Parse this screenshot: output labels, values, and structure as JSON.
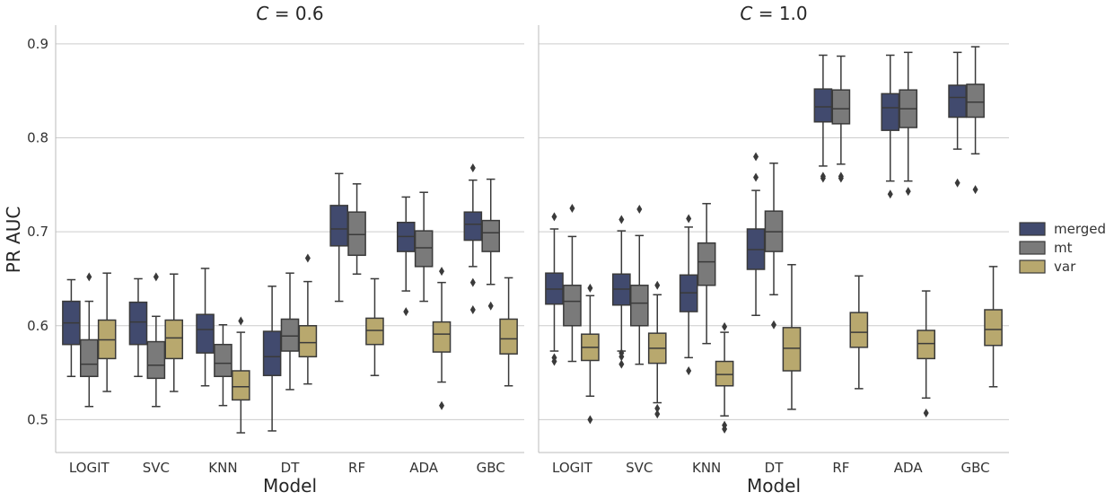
{
  "chart_data": {
    "type": "box",
    "ylabel": "PR AUC",
    "xlabel": "Model",
    "ylim": [
      0.465,
      0.92
    ],
    "yticks": [
      "0.5",
      "0.6",
      "0.7",
      "0.8",
      "0.9"
    ],
    "ytick_values": [
      0.5,
      0.6,
      0.7,
      0.8,
      0.9
    ],
    "grid": "horizontal",
    "legend_position": "right",
    "categories": [
      "LOGIT",
      "SVC",
      "KNN",
      "DT",
      "RF",
      "ADA",
      "GBC"
    ],
    "series": [
      {
        "name": "merged",
        "color": "#414a6e"
      },
      {
        "name": "mt",
        "color": "#7a7a7a"
      },
      {
        "name": "var",
        "color": "#b8a86e"
      }
    ],
    "panels": [
      {
        "title_var": "C",
        "title_eq": "= 0.6",
        "boxes": {
          "merged": [
            {
              "cat": "LOGIT",
              "whislo": 0.546,
              "q1": 0.58,
              "med": 0.603,
              "q3": 0.626,
              "whishi": 0.649,
              "fliers": []
            },
            {
              "cat": "SVC",
              "whislo": 0.546,
              "q1": 0.58,
              "med": 0.604,
              "q3": 0.625,
              "whishi": 0.65,
              "fliers": []
            },
            {
              "cat": "KNN",
              "whislo": 0.536,
              "q1": 0.571,
              "med": 0.596,
              "q3": 0.612,
              "whishi": 0.661,
              "fliers": []
            },
            {
              "cat": "DT",
              "whislo": 0.488,
              "q1": 0.547,
              "med": 0.567,
              "q3": 0.594,
              "whishi": 0.642,
              "fliers": []
            }
          ],
          "mt": [
            {
              "cat": "LOGIT",
              "whislo": 0.514,
              "q1": 0.546,
              "med": 0.559,
              "q3": 0.585,
              "whishi": 0.626,
              "fliers": [
                0.652
              ]
            },
            {
              "cat": "SVC",
              "whislo": 0.514,
              "q1": 0.544,
              "med": 0.558,
              "q3": 0.583,
              "whishi": 0.61,
              "fliers": [
                0.652
              ]
            },
            {
              "cat": "KNN",
              "whislo": 0.515,
              "q1": 0.546,
              "med": 0.56,
              "q3": 0.58,
              "whishi": 0.601,
              "fliers": []
            },
            {
              "cat": "DT",
              "whislo": 0.532,
              "q1": 0.573,
              "med": 0.589,
              "q3": 0.607,
              "whishi": 0.656,
              "fliers": []
            },
            {
              "cat": "RF",
              "whislo": 0.655,
              "q1": 0.675,
              "med": 0.697,
              "q3": 0.721,
              "whishi": 0.751,
              "fliers": []
            },
            {
              "cat": "ADA",
              "whislo": 0.626,
              "q1": 0.663,
              "med": 0.683,
              "q3": 0.701,
              "whishi": 0.742,
              "fliers": []
            },
            {
              "cat": "GBC",
              "whislo": 0.644,
              "q1": 0.679,
              "med": 0.699,
              "q3": 0.712,
              "whishi": 0.756,
              "fliers": [
                0.621
              ]
            }
          ],
          "var": [
            {
              "cat": "LOGIT",
              "whislo": 0.53,
              "q1": 0.565,
              "med": 0.585,
              "q3": 0.606,
              "whishi": 0.656,
              "fliers": []
            },
            {
              "cat": "SVC",
              "whislo": 0.53,
              "q1": 0.565,
              "med": 0.587,
              "q3": 0.606,
              "whishi": 0.655,
              "fliers": []
            },
            {
              "cat": "KNN",
              "whislo": 0.486,
              "q1": 0.521,
              "med": 0.535,
              "q3": 0.552,
              "whishi": 0.593,
              "fliers": [
                0.605
              ]
            },
            {
              "cat": "DT",
              "whislo": 0.538,
              "q1": 0.567,
              "med": 0.582,
              "q3": 0.6,
              "whishi": 0.647,
              "fliers": [
                0.672
              ]
            },
            {
              "cat": "RF",
              "whislo": 0.547,
              "q1": 0.58,
              "med": 0.595,
              "q3": 0.608,
              "whishi": 0.65,
              "fliers": []
            },
            {
              "cat": "ADA",
              "whislo": 0.54,
              "q1": 0.572,
              "med": 0.591,
              "q3": 0.604,
              "whishi": 0.646,
              "fliers": [
                0.658,
                0.515
              ]
            },
            {
              "cat": "GBC",
              "whislo": 0.536,
              "q1": 0.57,
              "med": 0.586,
              "q3": 0.607,
              "whishi": 0.651,
              "fliers": []
            }
          ]
        },
        "rf_ada_gbc_merged": [
          {
            "cat": "RF",
            "whislo": 0.626,
            "q1": 0.685,
            "med": 0.703,
            "q3": 0.728,
            "whishi": 0.762,
            "fliers": []
          },
          {
            "cat": "ADA",
            "whislo": 0.637,
            "q1": 0.679,
            "med": 0.695,
            "q3": 0.71,
            "whishi": 0.737,
            "fliers": [
              0.615
            ]
          },
          {
            "cat": "GBC",
            "whislo": 0.663,
            "q1": 0.691,
            "med": 0.708,
            "q3": 0.721,
            "whishi": 0.755,
            "fliers": [
              0.768,
              0.646,
              0.617
            ]
          }
        ]
      },
      {
        "title_var": "C",
        "title_eq": "= 1.0",
        "boxes": {
          "merged": [
            {
              "cat": "LOGIT",
              "whislo": 0.573,
              "q1": 0.623,
              "med": 0.639,
              "q3": 0.656,
              "whishi": 0.703,
              "fliers": [
                0.716,
                0.566,
                0.562
              ]
            },
            {
              "cat": "SVC",
              "whislo": 0.573,
              "q1": 0.622,
              "med": 0.639,
              "q3": 0.655,
              "whishi": 0.701,
              "fliers": [
                0.713,
                0.571,
                0.567,
                0.559
              ]
            },
            {
              "cat": "KNN",
              "whislo": 0.566,
              "q1": 0.615,
              "med": 0.635,
              "q3": 0.654,
              "whishi": 0.705,
              "fliers": [
                0.714,
                0.552
              ]
            },
            {
              "cat": "DT",
              "whislo": 0.611,
              "q1": 0.66,
              "med": 0.681,
              "q3": 0.703,
              "whishi": 0.744,
              "fliers": [
                0.78,
                0.758
              ]
            },
            {
              "cat": "RF",
              "whislo": 0.77,
              "q1": 0.817,
              "med": 0.833,
              "q3": 0.852,
              "whishi": 0.888,
              "fliers": [
                0.759,
                0.757
              ]
            },
            {
              "cat": "ADA",
              "whislo": 0.754,
              "q1": 0.808,
              "med": 0.832,
              "q3": 0.847,
              "whishi": 0.888,
              "fliers": [
                0.74
              ]
            },
            {
              "cat": "GBC",
              "whislo": 0.788,
              "q1": 0.822,
              "med": 0.843,
              "q3": 0.856,
              "whishi": 0.891,
              "fliers": [
                0.752
              ]
            }
          ],
          "mt": [
            {
              "cat": "LOGIT",
              "whislo": 0.562,
              "q1": 0.6,
              "med": 0.626,
              "q3": 0.643,
              "whishi": 0.695,
              "fliers": [
                0.725
              ]
            },
            {
              "cat": "SVC",
              "whislo": 0.559,
              "q1": 0.6,
              "med": 0.624,
              "q3": 0.643,
              "whishi": 0.696,
              "fliers": [
                0.724
              ]
            },
            {
              "cat": "KNN",
              "whislo": 0.581,
              "q1": 0.643,
              "med": 0.668,
              "q3": 0.688,
              "whishi": 0.73,
              "fliers": []
            },
            {
              "cat": "DT",
              "whislo": 0.633,
              "q1": 0.679,
              "med": 0.7,
              "q3": 0.722,
              "whishi": 0.773,
              "fliers": [
                0.601
              ]
            },
            {
              "cat": "RF",
              "whislo": 0.772,
              "q1": 0.815,
              "med": 0.831,
              "q3": 0.851,
              "whishi": 0.887,
              "fliers": [
                0.759,
                0.757
              ]
            },
            {
              "cat": "ADA",
              "whislo": 0.754,
              "q1": 0.811,
              "med": 0.831,
              "q3": 0.851,
              "whishi": 0.891,
              "fliers": [
                0.743
              ]
            },
            {
              "cat": "GBC",
              "whislo": 0.783,
              "q1": 0.822,
              "med": 0.838,
              "q3": 0.857,
              "whishi": 0.897,
              "fliers": [
                0.745
              ]
            }
          ],
          "var": [
            {
              "cat": "LOGIT",
              "whislo": 0.525,
              "q1": 0.563,
              "med": 0.577,
              "q3": 0.591,
              "whishi": 0.632,
              "fliers": [
                0.64,
                0.5
              ]
            },
            {
              "cat": "SVC",
              "whislo": 0.518,
              "q1": 0.56,
              "med": 0.576,
              "q3": 0.592,
              "whishi": 0.633,
              "fliers": [
                0.643,
                0.512,
                0.506
              ]
            },
            {
              "cat": "KNN",
              "whislo": 0.504,
              "q1": 0.536,
              "med": 0.548,
              "q3": 0.562,
              "whishi": 0.593,
              "fliers": [
                0.599,
                0.494,
                0.49
              ]
            },
            {
              "cat": "DT",
              "whislo": 0.511,
              "q1": 0.552,
              "med": 0.576,
              "q3": 0.598,
              "whishi": 0.665,
              "fliers": []
            },
            {
              "cat": "RF",
              "whislo": 0.533,
              "q1": 0.577,
              "med": 0.593,
              "q3": 0.614,
              "whishi": 0.653,
              "fliers": []
            },
            {
              "cat": "ADA",
              "whislo": 0.523,
              "q1": 0.565,
              "med": 0.581,
              "q3": 0.595,
              "whishi": 0.637,
              "fliers": [
                0.507
              ]
            },
            {
              "cat": "GBC",
              "whislo": 0.535,
              "q1": 0.579,
              "med": 0.596,
              "q3": 0.617,
              "whishi": 0.663,
              "fliers": []
            }
          ]
        }
      }
    ]
  }
}
